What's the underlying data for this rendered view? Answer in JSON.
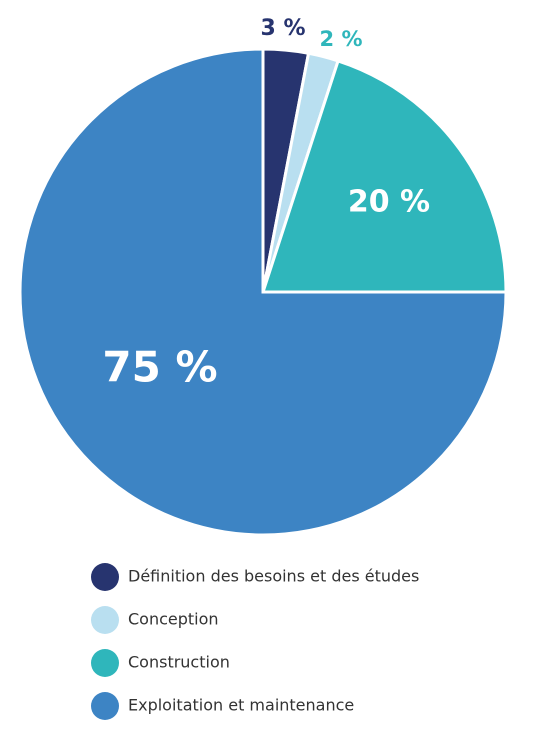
{
  "chart_data": {
    "type": "pie",
    "categories": [
      "Définition des besoins et des études",
      "Conception",
      "Construction",
      "Exploitation et maintenance"
    ],
    "values": [
      3,
      2,
      20,
      75
    ],
    "value_labels": [
      "3 %",
      "2 %",
      "20 %",
      "75 %"
    ],
    "colors": [
      "#27346f",
      "#b9dff0",
      "#2fb6bb",
      "#3d84c4"
    ]
  }
}
